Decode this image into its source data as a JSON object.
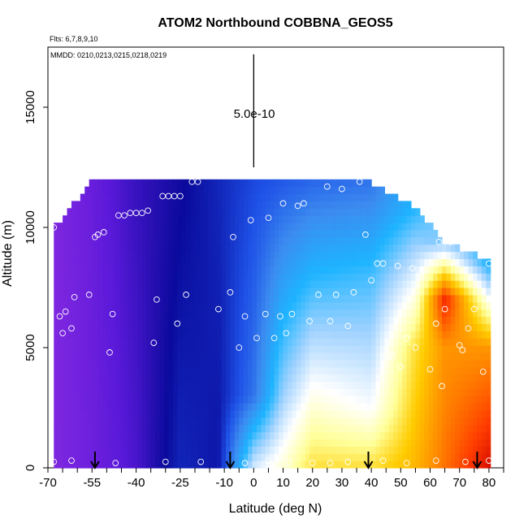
{
  "chart_data": {
    "type": "heatmap",
    "title": "ATOM2 Northbound COBBNA_GEOS5",
    "annotations": {
      "flights": "Flts: 6,7,8,9,10",
      "dates": "MMDD: 0210,0213,0215,0218,0219",
      "scale_label": "5.0e-10"
    },
    "xlabel": "Latitude (deg N)",
    "ylabel": "Altitude (m)",
    "xlim": [
      -70,
      85
    ],
    "ylim": [
      0,
      17500
    ],
    "x_ticks": [
      -70,
      -55,
      -40,
      -25,
      -10,
      0,
      10,
      20,
      30,
      40,
      50,
      60,
      70,
      80
    ],
    "x_tick_labels": [
      "-70",
      "-55",
      "-40",
      "-25",
      "-10",
      "0",
      "10",
      "20",
      "30",
      "40",
      "50",
      "60",
      "70",
      "80"
    ],
    "x_minor_ticks": [
      -65,
      -60,
      -50,
      -45,
      -35,
      -30,
      -20,
      -15,
      -5,
      5,
      15,
      25,
      35,
      45,
      55,
      65,
      75,
      85
    ],
    "y_ticks": [
      0,
      5000,
      10000,
      15000
    ],
    "y_tick_labels": [
      "0",
      "5000",
      "10000",
      "15000"
    ],
    "grid": false,
    "colormap": [
      "#8a2be2",
      "#5a19d9",
      "#0a0a9c",
      "#1e50e6",
      "#3c8cf0",
      "#1eb4ff",
      "#a0d2ff",
      "#ffffff",
      "#ffff9a",
      "#ffcc00",
      "#ff8a00",
      "#ff3c00",
      "#cc0000"
    ],
    "field_summary": {
      "surface_top_m": 12000,
      "columns": [
        {
          "lat": -68,
          "top": 10000,
          "values_by_alt": [
            [
              0,
              0.02
            ],
            [
              10000,
              0.02
            ]
          ]
        },
        {
          "lat": -55,
          "top": 11900,
          "values_by_alt": [
            [
              0,
              0.05
            ],
            [
              11900,
              0.06
            ]
          ]
        },
        {
          "lat": -40,
          "top": 12000,
          "values_by_alt": [
            [
              0,
              0.1
            ],
            [
              12000,
              0.12
            ]
          ]
        },
        {
          "lat": -25,
          "top": 12000,
          "values_by_alt": [
            [
              0,
              0.2
            ],
            [
              12000,
              0.16
            ]
          ]
        },
        {
          "lat": -12,
          "top": 12000,
          "values_by_alt": [
            [
              0,
              0.18
            ],
            [
              12000,
              0.2
            ]
          ]
        },
        {
          "lat": 0,
          "top": 12000,
          "values_by_alt": [
            [
              0,
              0.55
            ],
            [
              3000,
              0.3
            ],
            [
              12000,
              0.24
            ]
          ]
        },
        {
          "lat": 10,
          "top": 12000,
          "values_by_alt": [
            [
              0,
              0.62
            ],
            [
              3000,
              0.5
            ],
            [
              12000,
              0.26
            ]
          ]
        },
        {
          "lat": 20,
          "top": 12000,
          "values_by_alt": [
            [
              0,
              0.72
            ],
            [
              3000,
              0.6
            ],
            [
              8000,
              0.42
            ],
            [
              12000,
              0.28
            ]
          ]
        },
        {
          "lat": 40,
          "top": 11900,
          "values_by_alt": [
            [
              0,
              0.72
            ],
            [
              2500,
              0.58
            ],
            [
              8000,
              0.44
            ],
            [
              11900,
              0.3
            ]
          ]
        },
        {
          "lat": 55,
          "top": 10800,
          "values_by_alt": [
            [
              0,
              0.78
            ],
            [
              5000,
              0.72
            ],
            [
              8000,
              0.56
            ],
            [
              10800,
              0.42
            ]
          ]
        },
        {
          "lat": 65,
          "top": 9400,
          "values_by_alt": [
            [
              0,
              0.86
            ],
            [
              5000,
              0.82
            ],
            [
              7000,
              0.95
            ],
            [
              9400,
              0.48
            ]
          ]
        },
        {
          "lat": 80,
          "top": 8600,
          "values_by_alt": [
            [
              0,
              0.98
            ],
            [
              5000,
              0.82
            ],
            [
              8600,
              0.4
            ]
          ]
        }
      ]
    },
    "samples": [
      {
        "lat": -68,
        "alt": 10000
      },
      {
        "lat": -67,
        "alt": 10600
      },
      {
        "lat": -66,
        "alt": 6300
      },
      {
        "lat": -65,
        "alt": 5600
      },
      {
        "lat": -64,
        "alt": 6500
      },
      {
        "lat": -62,
        "alt": 5800
      },
      {
        "lat": -61,
        "alt": 7100
      },
      {
        "lat": -58,
        "alt": 11900
      },
      {
        "lat": -56,
        "alt": 7200
      },
      {
        "lat": -54,
        "alt": 9600
      },
      {
        "lat": -53,
        "alt": 9700
      },
      {
        "lat": -51,
        "alt": 9800
      },
      {
        "lat": -49,
        "alt": 4800
      },
      {
        "lat": -48,
        "alt": 6400
      },
      {
        "lat": -46,
        "alt": 10500
      },
      {
        "lat": -44,
        "alt": 10500
      },
      {
        "lat": -42,
        "alt": 10600
      },
      {
        "lat": -40,
        "alt": 10600
      },
      {
        "lat": -38,
        "alt": 10600
      },
      {
        "lat": -36,
        "alt": 10700
      },
      {
        "lat": -34,
        "alt": 5200
      },
      {
        "lat": -33,
        "alt": 7000
      },
      {
        "lat": -31,
        "alt": 11300
      },
      {
        "lat": -29,
        "alt": 11300
      },
      {
        "lat": -27,
        "alt": 11300
      },
      {
        "lat": -26,
        "alt": 6000
      },
      {
        "lat": -25,
        "alt": 11300
      },
      {
        "lat": -23,
        "alt": 7200
      },
      {
        "lat": -21,
        "alt": 11900
      },
      {
        "lat": -19,
        "alt": 11900
      },
      {
        "lat": -12,
        "alt": 6600
      },
      {
        "lat": -7,
        "alt": 9600
      },
      {
        "lat": -8,
        "alt": 7300
      },
      {
        "lat": -5,
        "alt": 5000
      },
      {
        "lat": -3,
        "alt": 6300
      },
      {
        "lat": -1,
        "alt": 10300
      },
      {
        "lat": 1,
        "alt": 5400
      },
      {
        "lat": 4,
        "alt": 6400
      },
      {
        "lat": 5,
        "alt": 10400
      },
      {
        "lat": 7,
        "alt": 5400
      },
      {
        "lat": 9,
        "alt": 6300
      },
      {
        "lat": 10,
        "alt": 11000
      },
      {
        "lat": 11,
        "alt": 5600
      },
      {
        "lat": 13,
        "alt": 6400
      },
      {
        "lat": 15,
        "alt": 10900
      },
      {
        "lat": 17,
        "alt": 11000
      },
      {
        "lat": 19,
        "alt": 6100
      },
      {
        "lat": 22,
        "alt": 7200
      },
      {
        "lat": 25,
        "alt": 11700
      },
      {
        "lat": 26,
        "alt": 6100
      },
      {
        "lat": 28,
        "alt": 7200
      },
      {
        "lat": 30,
        "alt": 11600
      },
      {
        "lat": 32,
        "alt": 5900
      },
      {
        "lat": 34,
        "alt": 7300
      },
      {
        "lat": 36,
        "alt": 11900
      },
      {
        "lat": 38,
        "alt": 9700
      },
      {
        "lat": 40,
        "alt": 7800
      },
      {
        "lat": 42,
        "alt": 8500
      },
      {
        "lat": 44,
        "alt": 8500
      },
      {
        "lat": 46,
        "alt": 4600
      },
      {
        "lat": 47,
        "alt": 4700
      },
      {
        "lat": 49,
        "alt": 8400
      },
      {
        "lat": 50,
        "alt": 4200
      },
      {
        "lat": 52,
        "alt": 5400
      },
      {
        "lat": 54,
        "alt": 8300
      },
      {
        "lat": 55,
        "alt": 5000
      },
      {
        "lat": 57,
        "alt": 8100
      },
      {
        "lat": 60,
        "alt": 4100
      },
      {
        "lat": 62,
        "alt": 6000
      },
      {
        "lat": 63,
        "alt": 9400
      },
      {
        "lat": 64,
        "alt": 3400
      },
      {
        "lat": 65,
        "alt": 6600
      },
      {
        "lat": 67,
        "alt": 9400
      },
      {
        "lat": 70,
        "alt": 5100
      },
      {
        "lat": 71,
        "alt": 4900
      },
      {
        "lat": 73,
        "alt": 5800
      },
      {
        "lat": 75,
        "alt": 6600
      },
      {
        "lat": 78,
        "alt": 4000
      },
      {
        "lat": 80,
        "alt": 8500
      },
      {
        "lat": -68,
        "alt": 250
      },
      {
        "lat": -62,
        "alt": 300
      },
      {
        "lat": -47,
        "alt": 200
      },
      {
        "lat": -30,
        "alt": 250
      },
      {
        "lat": -18,
        "alt": 250
      },
      {
        "lat": -3,
        "alt": 200
      },
      {
        "lat": 5,
        "alt": 300
      },
      {
        "lat": 12,
        "alt": 200
      },
      {
        "lat": 20,
        "alt": 200
      },
      {
        "lat": 26,
        "alt": 200
      },
      {
        "lat": 32,
        "alt": 250
      },
      {
        "lat": 44,
        "alt": 300
      },
      {
        "lat": 52,
        "alt": 200
      },
      {
        "lat": 62,
        "alt": 300
      },
      {
        "lat": 72,
        "alt": 250
      },
      {
        "lat": 80,
        "alt": 300
      }
    ],
    "arrows_at_lat": [
      -54,
      -8,
      39,
      76
    ],
    "scale_bar": {
      "lat": 0,
      "alt_start": 12500,
      "alt_end": 17200
    }
  }
}
